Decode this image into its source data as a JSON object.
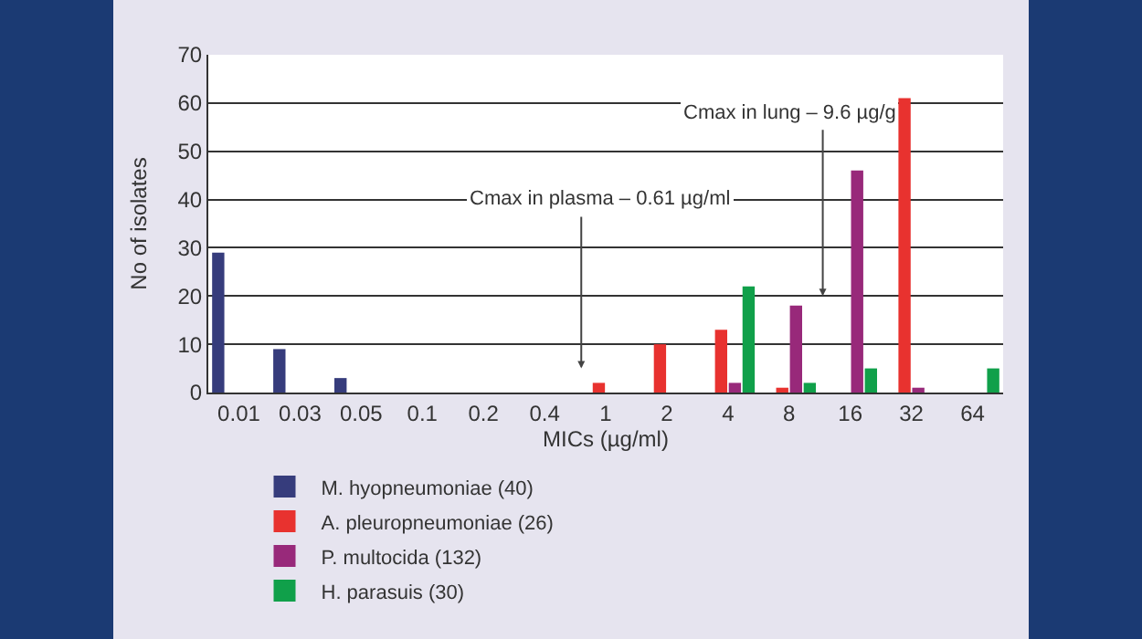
{
  "chart_data": {
    "type": "bar",
    "xlabel": "MICs (µg/ml)",
    "ylabel": "No of isolates",
    "categories": [
      "0.01",
      "0.03",
      "0.05",
      "0.1",
      "0.2",
      "0.4",
      "1",
      "2",
      "4",
      "8",
      "16",
      "32",
      "64"
    ],
    "series": [
      {
        "name": "M. hyopneumoniae (40)",
        "color": "#363c7c",
        "values": [
          29,
          9,
          3,
          null,
          null,
          null,
          null,
          null,
          null,
          null,
          null,
          null,
          null
        ]
      },
      {
        "name": "A. pleuropneumoniae (26)",
        "color": "#e8322f",
        "values": [
          null,
          null,
          null,
          null,
          null,
          null,
          2,
          10,
          13,
          1,
          null,
          61,
          null
        ]
      },
      {
        "name": "P. multocida (132)",
        "color": "#98297a",
        "values": [
          null,
          null,
          null,
          null,
          null,
          null,
          null,
          null,
          2,
          18,
          46,
          1,
          null
        ]
      },
      {
        "name": "H. parasuis (30)",
        "color": "#10a04a",
        "values": [
          null,
          null,
          null,
          null,
          null,
          null,
          null,
          null,
          22,
          2,
          5,
          null,
          5
        ]
      }
    ],
    "ylim": [
      0,
      70
    ],
    "yticks": [
      0,
      10,
      20,
      30,
      40,
      50,
      60,
      70
    ],
    "grid": "y",
    "legend": "bottom",
    "annotations": [
      "Cmax in plasma – 0.61 µg/ml",
      "Cmax in lung – 9.6 µg/g"
    ]
  }
}
